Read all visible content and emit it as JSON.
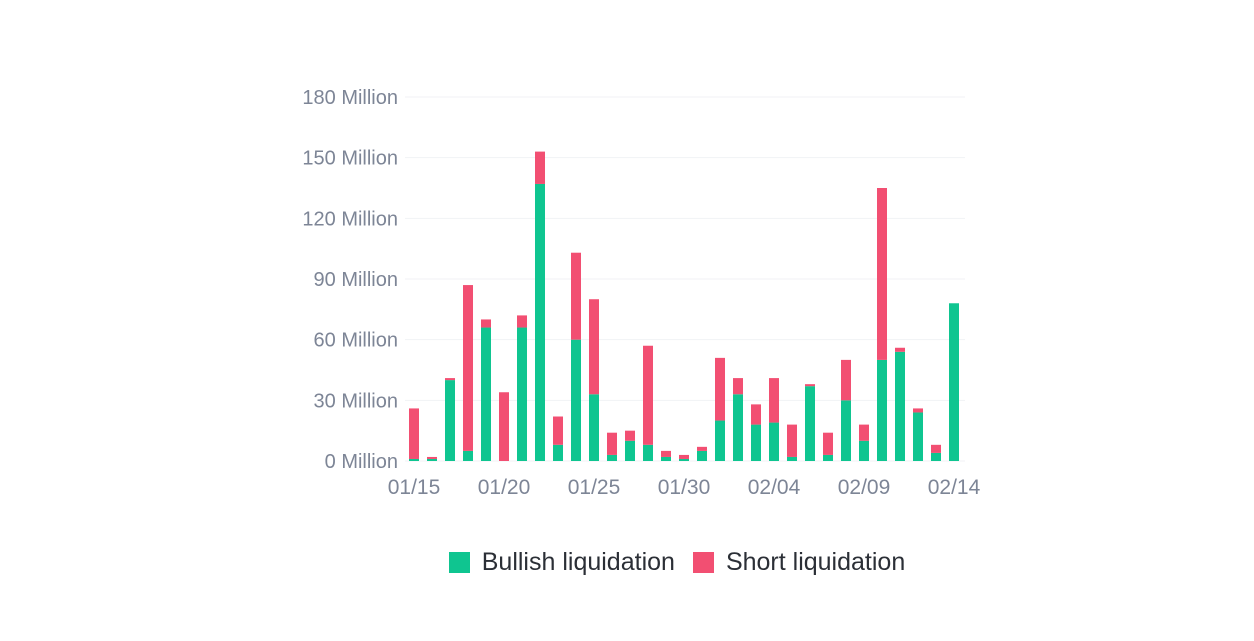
{
  "chart_data": {
    "type": "bar",
    "stacked": true,
    "categories": [
      "01/15",
      "01/16",
      "01/17",
      "01/18",
      "01/19",
      "01/20",
      "01/21",
      "01/22",
      "01/23",
      "01/24",
      "01/25",
      "01/26",
      "01/27",
      "01/28",
      "01/29",
      "01/30",
      "01/31",
      "02/01",
      "02/02",
      "02/03",
      "02/04",
      "02/05",
      "02/06",
      "02/07",
      "02/08",
      "02/09",
      "02/10",
      "02/11",
      "02/12",
      "02/13",
      "02/14"
    ],
    "x_tick_labels": [
      "01/15",
      "01/20",
      "01/25",
      "01/30",
      "02/04",
      "02/09",
      "02/14"
    ],
    "y_tick_labels": [
      "180 Million",
      "150 Million",
      "120 Million",
      "90 Million",
      "60 Million",
      "30 Million",
      "0 Million"
    ],
    "ylim": [
      0,
      180
    ],
    "grid": true,
    "legend_position": "bottom",
    "series": [
      {
        "name": "Bullish liquidation",
        "color": "#0fc590",
        "values": [
          1,
          1,
          40,
          5,
          66,
          0,
          66,
          137,
          8,
          60,
          33,
          3,
          10,
          8,
          2,
          1,
          5,
          20,
          33,
          18,
          19,
          2,
          37,
          3,
          30,
          10,
          50,
          54,
          24,
          4,
          78
        ]
      },
      {
        "name": "Short liquidation",
        "color": "#f24f72",
        "values": [
          25,
          1,
          1,
          82,
          4,
          34,
          6,
          16,
          14,
          43,
          47,
          11,
          5,
          49,
          3,
          2,
          2,
          31,
          8,
          10,
          22,
          16,
          1,
          11,
          20,
          8,
          85,
          2,
          2,
          4,
          0
        ]
      }
    ]
  },
  "legend": {
    "bullish_label": "Bullish liquidation",
    "short_label": "Short liquidation",
    "bullish_color": "#0fc590",
    "short_color": "#f24f72"
  }
}
